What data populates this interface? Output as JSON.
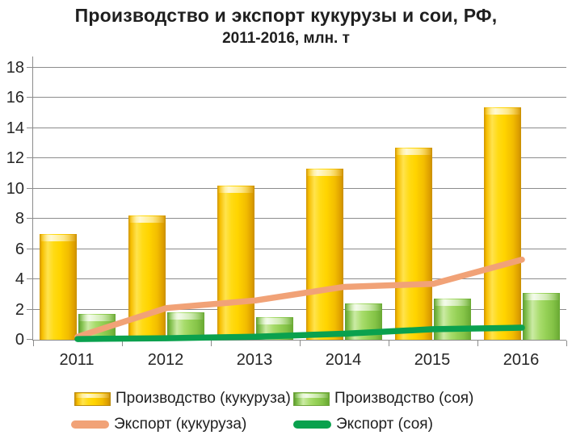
{
  "title": {
    "line1": "Производство и экспорт  кукурузы и сои, РФ,",
    "line2": "2011-2016, млн. т"
  },
  "chart_data": {
    "type": "combo",
    "categories": [
      "2011",
      "2012",
      "2013",
      "2014",
      "2015",
      "2016"
    ],
    "series": [
      {
        "name": "Производство (кукуруза)",
        "type": "bar",
        "color": "#FFD400",
        "values": [
          7.0,
          8.2,
          10.2,
          11.3,
          12.7,
          15.4
        ]
      },
      {
        "name": "Производство (соя)",
        "type": "bar",
        "color": "#9CD65F",
        "values": [
          1.7,
          1.8,
          1.5,
          2.4,
          2.7,
          3.1
        ]
      },
      {
        "name": "Экспорт (кукуруза)",
        "type": "line",
        "color": "#F1A277",
        "values": [
          0.2,
          2.1,
          2.6,
          3.5,
          3.7,
          5.3
        ]
      },
      {
        "name": "Экспорт (соя)",
        "type": "line",
        "color": "#0AA14E",
        "values": [
          0.05,
          0.1,
          0.2,
          0.4,
          0.7,
          0.8
        ]
      }
    ],
    "title": "Производство и экспорт кукурузы и сои, РФ, 2011-2016, млн. т",
    "xlabel": "",
    "ylabel": "",
    "ylim": [
      0,
      18
    ],
    "y_tick_step": 2,
    "y_tick_labels": [
      "0",
      "2",
      "4",
      "6",
      "8",
      "10",
      "12",
      "14",
      "16",
      "18"
    ],
    "grid": true,
    "legend_position": "bottom",
    "axis_color": "#8C8C8C",
    "text_color": "#262626"
  }
}
